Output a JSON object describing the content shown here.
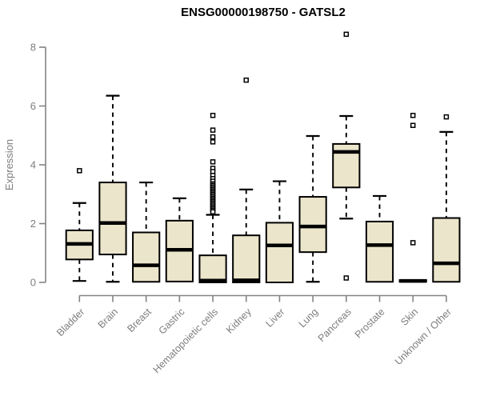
{
  "chart_data": {
    "type": "boxplot",
    "title": "ENSG00000198750 - GATSL2",
    "ylabel": "Expression",
    "xlabel": "",
    "ylim": [
      0,
      8
    ],
    "yticks": [
      "0",
      "2",
      "4",
      "6",
      "8"
    ],
    "grid": "off",
    "legend": "none",
    "colors": {
      "box_fill": "#ebe5cb",
      "box_stroke": "#000000",
      "median_stroke": "#000000",
      "whisker_stroke": "#000000",
      "outlier_stroke": "#000000",
      "axis": "#848484",
      "label": "#7d7d7d",
      "title": "#000000"
    },
    "categories": [
      "Bladder",
      "Brain",
      "Breast",
      "Gastric",
      "Hematopoietic cells",
      "Kidney",
      "Liver",
      "Lung",
      "Pancreas",
      "Prostate",
      "Skin",
      "Unknown / Other"
    ],
    "series": [
      {
        "name": "Bladder",
        "whisker_low": 0.05,
        "q1": 0.78,
        "median": 1.31,
        "q3": 1.77,
        "whisker_high": 2.7,
        "outliers": [
          3.8
        ]
      },
      {
        "name": "Brain",
        "whisker_low": 0.02,
        "q1": 0.95,
        "median": 2.02,
        "q3": 3.4,
        "whisker_high": 6.35,
        "outliers": []
      },
      {
        "name": "Breast",
        "whisker_low": 0.02,
        "q1": 0.02,
        "median": 0.58,
        "q3": 1.7,
        "whisker_high": 3.4,
        "outliers": []
      },
      {
        "name": "Gastric",
        "whisker_low": 0.03,
        "q1": 0.03,
        "median": 1.11,
        "q3": 2.1,
        "whisker_high": 2.86,
        "outliers": []
      },
      {
        "name": "Hematopoietic cells",
        "whisker_low": 0.0,
        "q1": 0.0,
        "median": 0.06,
        "q3": 0.92,
        "whisker_high": 2.3,
        "outliers": [
          5.68,
          5.18,
          4.95,
          4.78,
          4.1,
          3.88,
          3.77,
          3.64,
          3.53,
          3.44,
          3.35,
          3.3,
          3.25,
          3.2,
          3.15,
          3.1,
          3.05,
          3.0,
          2.95,
          2.9,
          2.85,
          2.8,
          2.75,
          2.7,
          2.65,
          2.6,
          2.55,
          2.5,
          2.45,
          2.4
        ]
      },
      {
        "name": "Kidney",
        "whisker_low": 0.0,
        "q1": 0.0,
        "median": 0.07,
        "q3": 1.6,
        "whisker_high": 3.16,
        "outliers": [
          6.88
        ]
      },
      {
        "name": "Liver",
        "whisker_low": 0.0,
        "q1": 0.0,
        "median": 1.26,
        "q3": 2.03,
        "whisker_high": 3.44,
        "outliers": []
      },
      {
        "name": "Lung",
        "whisker_low": 0.02,
        "q1": 1.03,
        "median": 1.9,
        "q3": 2.91,
        "whisker_high": 4.98,
        "outliers": []
      },
      {
        "name": "Pancreas",
        "whisker_low": 2.17,
        "q1": 3.23,
        "median": 4.44,
        "q3": 4.71,
        "whisker_high": 5.66,
        "outliers": [
          8.44,
          0.15
        ]
      },
      {
        "name": "Prostate",
        "whisker_low": 0.02,
        "q1": 0.02,
        "median": 1.27,
        "q3": 2.07,
        "whisker_high": 2.94,
        "outliers": []
      },
      {
        "name": "Skin",
        "whisker_low": 0.02,
        "q1": 0.02,
        "median": 0.05,
        "q3": 0.08,
        "whisker_high": 0.08,
        "outliers": [
          5.68,
          5.34,
          1.35
        ]
      },
      {
        "name": "Unknown / Other",
        "whisker_low": 0.02,
        "q1": 0.02,
        "median": 0.65,
        "q3": 2.19,
        "whisker_high": 5.12,
        "outliers": [
          5.63
        ]
      }
    ]
  }
}
